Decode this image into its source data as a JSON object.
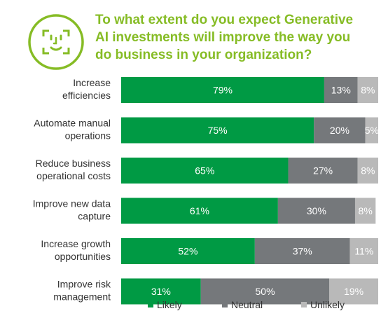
{
  "header": {
    "title_lines": [
      "To what extent do you expect Generative",
      "AI investments will improve the way you",
      "do business in your organization?"
    ],
    "icon": "face-scan-icon"
  },
  "colors": {
    "accent": "#86bc25",
    "likely": "#009a44",
    "neutral": "#75787b",
    "unlikely": "#b9b9b9",
    "label_text": "#333333"
  },
  "chart_data": {
    "type": "bar",
    "orientation": "horizontal",
    "stacked": true,
    "categories": [
      [
        "Increase",
        "efficiencies"
      ],
      [
        "Automate manual",
        "operations"
      ],
      [
        "Reduce business",
        "operational costs"
      ],
      [
        "Improve new data",
        "capture"
      ],
      [
        "Increase growth",
        "opportunities"
      ],
      [
        "Improve risk",
        "management"
      ]
    ],
    "series": [
      {
        "name": "Likely",
        "values": [
          79,
          75,
          65,
          61,
          52,
          31
        ]
      },
      {
        "name": "Neutral",
        "values": [
          13,
          20,
          27,
          30,
          37,
          50
        ]
      },
      {
        "name": "Unlikely",
        "values": [
          8,
          5,
          8,
          8,
          11,
          19
        ]
      }
    ],
    "value_suffix": "%",
    "xlim": [
      0,
      100
    ],
    "grid": false,
    "legend_position": "bottom"
  }
}
